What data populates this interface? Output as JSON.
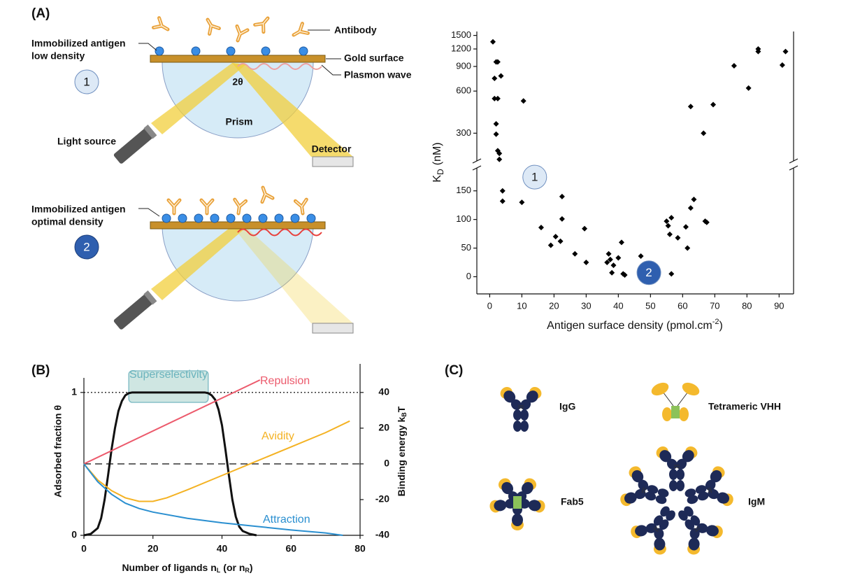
{
  "panel_labels": [
    "(A)",
    "(B)",
    "(C)"
  ],
  "diagram_a": {
    "antibody": "Antibody",
    "top": {
      "antigen_label": [
        "Immobilized antigen",
        "low density"
      ],
      "gold_surface": "Gold surface",
      "plasmon_wave": "Plasmon wave",
      "angle": "2θ",
      "prism": "Prism",
      "light_source": "Light source",
      "detector": "Detector",
      "marker": "1"
    },
    "bottom": {
      "antigen_label": [
        "Immobilized antigen",
        "optimal density"
      ],
      "marker": "2"
    }
  },
  "chart_data": [
    {
      "type": "scatter",
      "xlabel": {
        "text": "Antigen surface density (pmol.cm",
        "sup": "-2",
        "end": ")"
      },
      "ylabel": {
        "text": "K",
        "sub": "D",
        "end": "(nM)"
      },
      "xlim": [
        -4,
        94.5
      ],
      "xticks": [
        0,
        10,
        20,
        30,
        40,
        50,
        60,
        70,
        80,
        90
      ],
      "y_segments": [
        {
          "ylim": [
            -30,
            190
          ],
          "yticks": [
            0,
            50,
            100,
            150
          ],
          "log": false
        },
        {
          "ylim": [
            190,
            1600
          ],
          "yticks": [
            300,
            600,
            900,
            1200,
            1500
          ],
          "log": true
        }
      ],
      "color": "#000000",
      "x": [
        1,
        2,
        2.5,
        1.5,
        1.5,
        2.5,
        3.5,
        2,
        2,
        2.5,
        3,
        3,
        10.5,
        62.5,
        69.5,
        66.5,
        76,
        80.5,
        83.5,
        83.5,
        91,
        92,
        4,
        4,
        10,
        16,
        19,
        20.5,
        22,
        22.5,
        22.5,
        26.5,
        29.5,
        30,
        36.5,
        37,
        37.5,
        38,
        38.5,
        40,
        41,
        41.5,
        42,
        47,
        55,
        55.5,
        56.5,
        56,
        56.5,
        58.5,
        61,
        61.5,
        62.5,
        63.5,
        67,
        67.5
      ],
      "values": [
        1350,
        970,
        970,
        740,
        530,
        530,
        770,
        350,
        295,
        225,
        215,
        195,
        510,
        465,
        480,
        300,
        910,
        630,
        1200,
        1150,
        920,
        1150,
        150,
        132,
        130,
        86,
        55,
        70,
        62,
        101,
        140,
        40,
        84,
        25,
        25,
        40,
        30,
        7,
        20,
        33,
        60,
        5,
        3,
        36,
        97,
        89,
        103,
        74,
        5,
        68,
        87,
        50,
        120,
        135,
        97,
        95
      ],
      "annotations": [
        {
          "text": "1",
          "x": 14,
          "y": 174,
          "color": "#dde9f6",
          "text_color": "#222222"
        },
        {
          "text": "2",
          "x": 49.5,
          "y": 7,
          "color": "#2f5faf",
          "text_color": "#ffffff"
        }
      ]
    },
    {
      "type": "line",
      "xlabel": {
        "text": "Number of ligands n",
        "sub": "L",
        "text2": "(or n",
        "sub2": "R",
        "end": ")"
      },
      "ylabel": "Adsorbed fraction θ",
      "y2label": {
        "text": "Binding energy k",
        "sub": "B",
        "end": "T"
      },
      "xlim": [
        0,
        80
      ],
      "xticks": [
        0,
        20,
        40,
        60,
        80
      ],
      "ylim": [
        0,
        1.2
      ],
      "yticks": [
        0,
        1
      ],
      "y2lim": [
        -40,
        56
      ],
      "y2ticks": [
        -40,
        -20,
        0,
        20,
        40
      ],
      "reference_lines": [
        {
          "axis": "y",
          "value": 1,
          "style": "dotted"
        },
        {
          "axis": "y2",
          "value": 0,
          "style": "dashed"
        }
      ],
      "highlight": {
        "label": "Superselectivity",
        "x": [
          13,
          36
        ],
        "color": "#cfe6e2"
      },
      "series": [
        {
          "color": "#111111",
          "axis": "y",
          "x": [
            0,
            2,
            4,
            5,
            6,
            7,
            8,
            9,
            10,
            11,
            12,
            13,
            14,
            35,
            36,
            37,
            38,
            39,
            40,
            41,
            42,
            43,
            44,
            45,
            46,
            48,
            50
          ],
          "values": [
            0,
            0.01,
            0.05,
            0.12,
            0.25,
            0.42,
            0.6,
            0.75,
            0.87,
            0.94,
            0.98,
            0.995,
            1,
            1,
            0.995,
            0.98,
            0.95,
            0.88,
            0.77,
            0.6,
            0.42,
            0.25,
            0.13,
            0.06,
            0.03,
            0.01,
            0
          ]
        },
        {
          "name": "Repulsion",
          "color": "#ec5a6c",
          "axis": "y2",
          "x": [
            0,
            51
          ],
          "values": [
            0,
            47
          ]
        },
        {
          "name": "Avidity",
          "color": "#f4b223",
          "axis": "y2",
          "x": [
            0,
            4,
            8,
            12,
            16,
            20,
            24,
            30,
            40,
            50,
            60,
            70,
            77
          ],
          "values": [
            0,
            -9,
            -15,
            -19,
            -21,
            -21,
            -19,
            -14.5,
            -6.5,
            1.5,
            9.5,
            17.5,
            24
          ]
        },
        {
          "name": "Attraction",
          "color": "#2a8fd0",
          "axis": "y2",
          "x": [
            0,
            4,
            8,
            12,
            16,
            20,
            30,
            40,
            50,
            60,
            70,
            75
          ],
          "values": [
            0,
            -10,
            -17,
            -22,
            -25,
            -27,
            -30.5,
            -33,
            -35,
            -37,
            -38.7,
            -40
          ]
        }
      ]
    }
  ],
  "diagram_c": {
    "labels": [
      "IgG",
      "Tetrameric VHH",
      "Fab5",
      "IgM"
    ]
  }
}
